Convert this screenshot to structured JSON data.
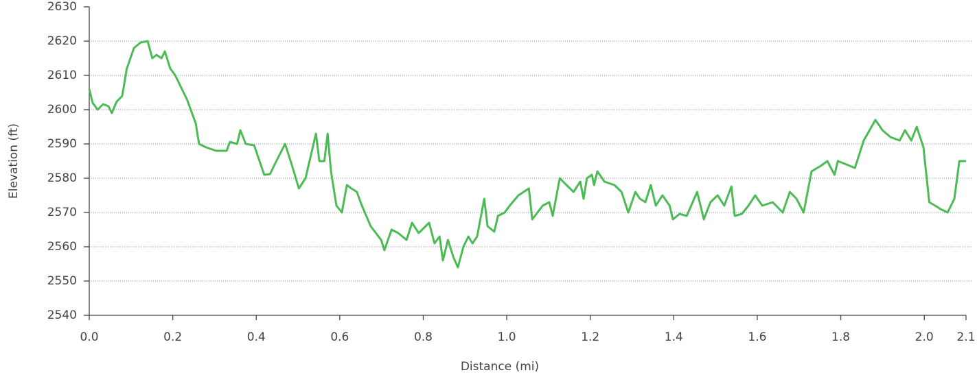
{
  "chart_data": {
    "type": "line",
    "x_label": "Distance (mi)",
    "y_label": "Elevation (ft)",
    "color": "#4dbb55",
    "grid": true,
    "xlim": [
      0,
      2.1
    ],
    "ylim": [
      2540,
      2630
    ],
    "xticks": [
      {
        "value": 0,
        "label": "0.0"
      },
      0.2,
      0.4,
      0.6,
      0.8,
      {
        "value": 1,
        "label": "1.0"
      },
      1.2,
      1.4,
      1.6,
      1.8,
      {
        "value": 2,
        "label": "2.0"
      },
      2.1
    ],
    "yticks": [
      2540,
      2550,
      2560,
      2570,
      2580,
      2590,
      2600,
      2610,
      2620,
      2630
    ],
    "x": [
      0,
      0.008,
      0.02,
      0.033,
      0.046,
      0.054,
      0.066,
      0.079,
      0.09,
      0.107,
      0.123,
      0.14,
      0.151,
      0.161,
      0.173,
      0.181,
      0.194,
      0.206,
      0.222,
      0.234,
      0.255,
      0.263,
      0.28,
      0.304,
      0.329,
      0.337,
      0.354,
      0.362,
      0.375,
      0.395,
      0.419,
      0.433,
      0.444,
      0.469,
      0.485,
      0.502,
      0.518,
      0.543,
      0.551,
      0.563,
      0.571,
      0.579,
      0.592,
      0.605,
      0.617,
      0.628,
      0.641,
      0.653,
      0.674,
      0.699,
      0.707,
      0.724,
      0.74,
      0.76,
      0.773,
      0.789,
      0.814,
      0.827,
      0.839,
      0.847,
      0.859,
      0.872,
      0.883,
      0.896,
      0.908,
      0.918,
      0.929,
      0.946,
      0.954,
      0.97,
      0.979,
      0.995,
      1.007,
      1.028,
      1.053,
      1.061,
      1.086,
      1.102,
      1.11,
      1.127,
      1.143,
      1.16,
      1.176,
      1.184,
      1.192,
      1.204,
      1.209,
      1.217,
      1.234,
      1.258,
      1.275,
      1.291,
      1.308,
      1.319,
      1.332,
      1.345,
      1.357,
      1.373,
      1.39,
      1.398,
      1.414,
      1.431,
      1.456,
      1.472,
      1.488,
      1.505,
      1.521,
      1.538,
      1.546,
      1.563,
      1.579,
      1.595,
      1.612,
      1.637,
      1.661,
      1.678,
      1.694,
      1.711,
      1.73,
      1.752,
      1.768,
      1.785,
      1.793,
      1.814,
      1.834,
      1.855,
      1.883,
      1.9,
      1.919,
      1.941,
      1.954,
      1.969,
      1.982,
      1.998,
      2.012,
      2.026,
      2.039,
      2.056,
      2.072,
      2.084,
      2.1
    ],
    "values": [
      2606,
      2602,
      2600,
      2601.6,
      2601,
      2599,
      2602.4,
      2604,
      2612,
      2618,
      2619.6,
      2620,
      2615,
      2616,
      2615,
      2617,
      2612,
      2610,
      2606,
      2603,
      2596,
      2590,
      2589,
      2588,
      2588,
      2590.6,
      2590,
      2594,
      2590,
      2589.6,
      2581,
      2581.2,
      2584,
      2590,
      2584,
      2577,
      2580,
      2593,
      2585,
      2585,
      2593,
      2582,
      2572,
      2570,
      2578,
      2577,
      2576,
      2572,
      2566,
      2562,
      2559,
      2565,
      2564,
      2562,
      2567,
      2564,
      2567,
      2561,
      2563,
      2556,
      2562,
      2557,
      2554,
      2560,
      2563,
      2561,
      2563,
      2574,
      2566,
      2564.4,
      2569,
      2570,
      2572,
      2575,
      2577,
      2568,
      2572,
      2573,
      2569,
      2580,
      2578,
      2576,
      2579,
      2574,
      2580,
      2581,
      2578,
      2582,
      2579,
      2578,
      2576,
      2570,
      2576,
      2574,
      2573,
      2578,
      2572,
      2575,
      2572,
      2568,
      2569.6,
      2569,
      2576,
      2568,
      2573,
      2575,
      2572,
      2577.6,
      2569,
      2569.6,
      2572,
      2575,
      2572,
      2573,
      2570,
      2576,
      2574,
      2570,
      2582,
      2583.6,
      2585,
      2581,
      2585,
      2584,
      2583,
      2591,
      2597,
      2594,
      2592,
      2591,
      2594,
      2591,
      2595,
      2589,
      2573,
      2572,
      2571,
      2570,
      2574,
      2585,
      2585
    ]
  }
}
